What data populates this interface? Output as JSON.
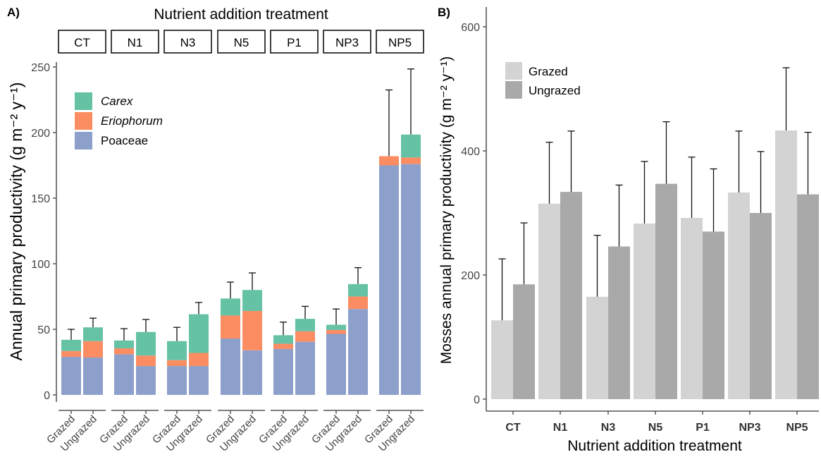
{
  "chart_data": [
    {
      "type": "bar",
      "stacked": true,
      "panel_label": "A)",
      "title": "Nutrient addition treatment",
      "ylabel": "Annual primary productivity (g m⁻² y⁻¹)",
      "ylim": [
        0,
        270
      ],
      "yticks": [
        0,
        50,
        100,
        150,
        200,
        250
      ],
      "facets": [
        "CT",
        "N1",
        "N3",
        "N5",
        "P1",
        "NP3",
        "NP5"
      ],
      "categories": [
        "Grazed",
        "Ungrazed"
      ],
      "legend": {
        "position": "top-left"
      },
      "series": [
        {
          "name": "Poaceae",
          "color": "#8DA0CB",
          "values": [
            [
              29,
              28.5
            ],
            [
              31,
              22
            ],
            [
              22,
              22
            ],
            [
              43,
              34
            ],
            [
              35,
              40.5
            ],
            [
              46.5,
              65.5
            ],
            [
              175,
              176
            ]
          ]
        },
        {
          "name": "Eriophorum",
          "color": "#FC8D62",
          "italic": true,
          "values": [
            [
              4.5,
              12.5
            ],
            [
              4.5,
              8
            ],
            [
              4.5,
              10
            ],
            [
              17.5,
              30
            ],
            [
              4,
              8
            ],
            [
              3,
              9.5
            ],
            [
              7,
              5
            ]
          ]
        },
        {
          "name": "Carex",
          "color": "#66C2A5",
          "italic": true,
          "values": [
            [
              8.5,
              10.5
            ],
            [
              6,
              18
            ],
            [
              14.5,
              29.5
            ],
            [
              13,
              16
            ],
            [
              6.5,
              9.5
            ],
            [
              4,
              9.5
            ],
            [
              0,
              17.5
            ]
          ]
        }
      ],
      "error_upper": [
        [
          50,
          58.5
        ],
        [
          50.5,
          57.5
        ],
        [
          51.5,
          70.5
        ],
        [
          86,
          93
        ],
        [
          55.5,
          67.5
        ],
        [
          65.5,
          97
        ],
        [
          232.5,
          248.5
        ]
      ]
    },
    {
      "type": "bar",
      "panel_label": "B)",
      "xlabel": "Nutrient addition treatment",
      "ylabel": "Mosses annual primary productivity (g m⁻² y⁻¹)",
      "ylim": [
        -20,
        640
      ],
      "yticks": [
        0,
        200,
        400,
        600
      ],
      "categories": [
        "CT",
        "N1",
        "N3",
        "N5",
        "P1",
        "NP3",
        "NP5"
      ],
      "legend": {
        "position": "top-left"
      },
      "series": [
        {
          "name": "Grazed",
          "color": "#D3D3D3",
          "values": [
            127,
            315,
            165,
            283,
            292,
            333,
            433
          ],
          "error_upper": [
            226,
            414,
            264,
            383,
            390,
            432,
            534
          ]
        },
        {
          "name": "Ungrazed",
          "color": "#A9A9A9",
          "values": [
            185,
            334,
            246,
            347,
            270,
            300,
            330
          ],
          "error_upper": [
            284,
            432,
            345,
            447,
            371,
            399,
            430
          ]
        }
      ]
    }
  ]
}
